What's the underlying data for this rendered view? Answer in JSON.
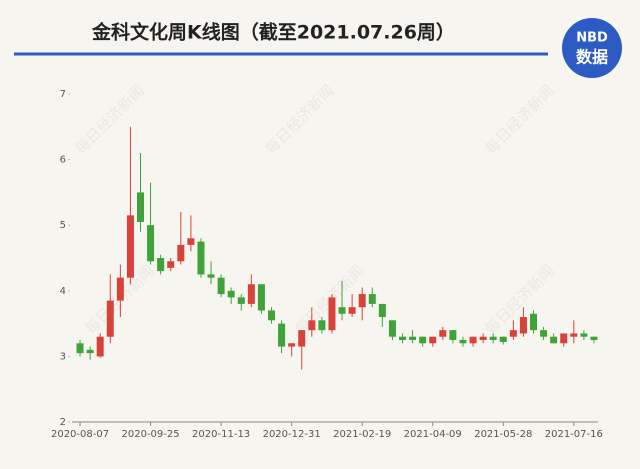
{
  "chart_data": {
    "type": "candlestick",
    "title": "金科文化周K线图（截至2021.07.26周）",
    "logo": {
      "top": "NBD",
      "bottom": "数据"
    },
    "watermark": "每日经济新闻",
    "categories": [
      "2020-08-07",
      null,
      null,
      null,
      null,
      null,
      null,
      "2020-09-25",
      null,
      null,
      null,
      null,
      null,
      null,
      "2020-11-13",
      null,
      null,
      null,
      null,
      null,
      null,
      "2020-12-31",
      null,
      null,
      null,
      null,
      null,
      null,
      "2021-02-19",
      null,
      null,
      null,
      null,
      null,
      null,
      "2021-04-09",
      null,
      null,
      null,
      null,
      null,
      null,
      "2021-05-28",
      null,
      null,
      null,
      null,
      null,
      null,
      "2021-07-16",
      null,
      null
    ],
    "open": [
      3.2,
      3.1,
      3.0,
      3.3,
      3.85,
      4.2,
      5.5,
      5.0,
      4.5,
      4.35,
      4.45,
      4.7,
      4.75,
      4.25,
      4.2,
      4.0,
      3.9,
      3.8,
      4.1,
      3.7,
      3.5,
      3.15,
      3.15,
      3.4,
      3.55,
      3.4,
      3.75,
      3.65,
      3.75,
      3.95,
      3.8,
      3.55,
      3.3,
      3.3,
      3.3,
      3.2,
      3.3,
      3.4,
      3.25,
      3.2,
      3.25,
      3.3,
      3.3,
      3.3,
      3.35,
      3.65,
      3.4,
      3.3,
      3.2,
      3.3,
      3.35,
      3.3
    ],
    "close": [
      3.05,
      3.05,
      3.3,
      3.85,
      4.2,
      5.15,
      5.05,
      4.45,
      4.3,
      4.45,
      4.7,
      4.8,
      4.25,
      4.2,
      3.95,
      3.9,
      3.8,
      4.1,
      3.7,
      3.55,
      3.15,
      3.2,
      3.4,
      3.55,
      3.4,
      3.9,
      3.65,
      3.75,
      3.95,
      3.8,
      3.6,
      3.3,
      3.25,
      3.25,
      3.2,
      3.3,
      3.4,
      3.25,
      3.2,
      3.3,
      3.3,
      3.25,
      3.22,
      3.4,
      3.6,
      3.4,
      3.3,
      3.2,
      3.35,
      3.35,
      3.3,
      3.25
    ],
    "high": [
      3.25,
      3.15,
      3.35,
      4.25,
      4.4,
      6.5,
      6.1,
      5.65,
      4.55,
      4.5,
      5.2,
      5.15,
      4.8,
      4.45,
      4.25,
      4.05,
      3.95,
      4.25,
      4.1,
      3.75,
      3.55,
      3.2,
      3.4,
      3.75,
      3.6,
      3.95,
      4.15,
      3.95,
      4.05,
      4.05,
      3.8,
      3.55,
      3.35,
      3.4,
      3.3,
      3.3,
      3.45,
      3.4,
      3.3,
      3.3,
      3.35,
      3.35,
      3.3,
      3.55,
      3.75,
      3.7,
      3.45,
      3.35,
      3.35,
      3.55,
      3.4,
      3.3
    ],
    "low": [
      3.0,
      2.95,
      2.98,
      3.2,
      3.6,
      4.1,
      4.9,
      4.4,
      4.25,
      4.3,
      4.4,
      4.6,
      4.2,
      4.1,
      3.9,
      3.8,
      3.7,
      3.75,
      3.65,
      3.5,
      3.05,
      3.0,
      2.8,
      3.3,
      3.35,
      3.35,
      3.55,
      3.6,
      3.55,
      3.75,
      3.45,
      3.25,
      3.2,
      3.2,
      3.15,
      3.15,
      3.25,
      3.2,
      3.15,
      3.15,
      3.2,
      3.2,
      3.18,
      3.25,
      3.3,
      3.35,
      3.25,
      3.2,
      3.15,
      3.2,
      3.25,
      3.2
    ],
    "up_color": "#d9413b",
    "down_color": "#3fa23a",
    "ylim": [
      2,
      7
    ],
    "yticks": [
      2,
      3,
      4,
      5,
      6,
      7
    ]
  }
}
